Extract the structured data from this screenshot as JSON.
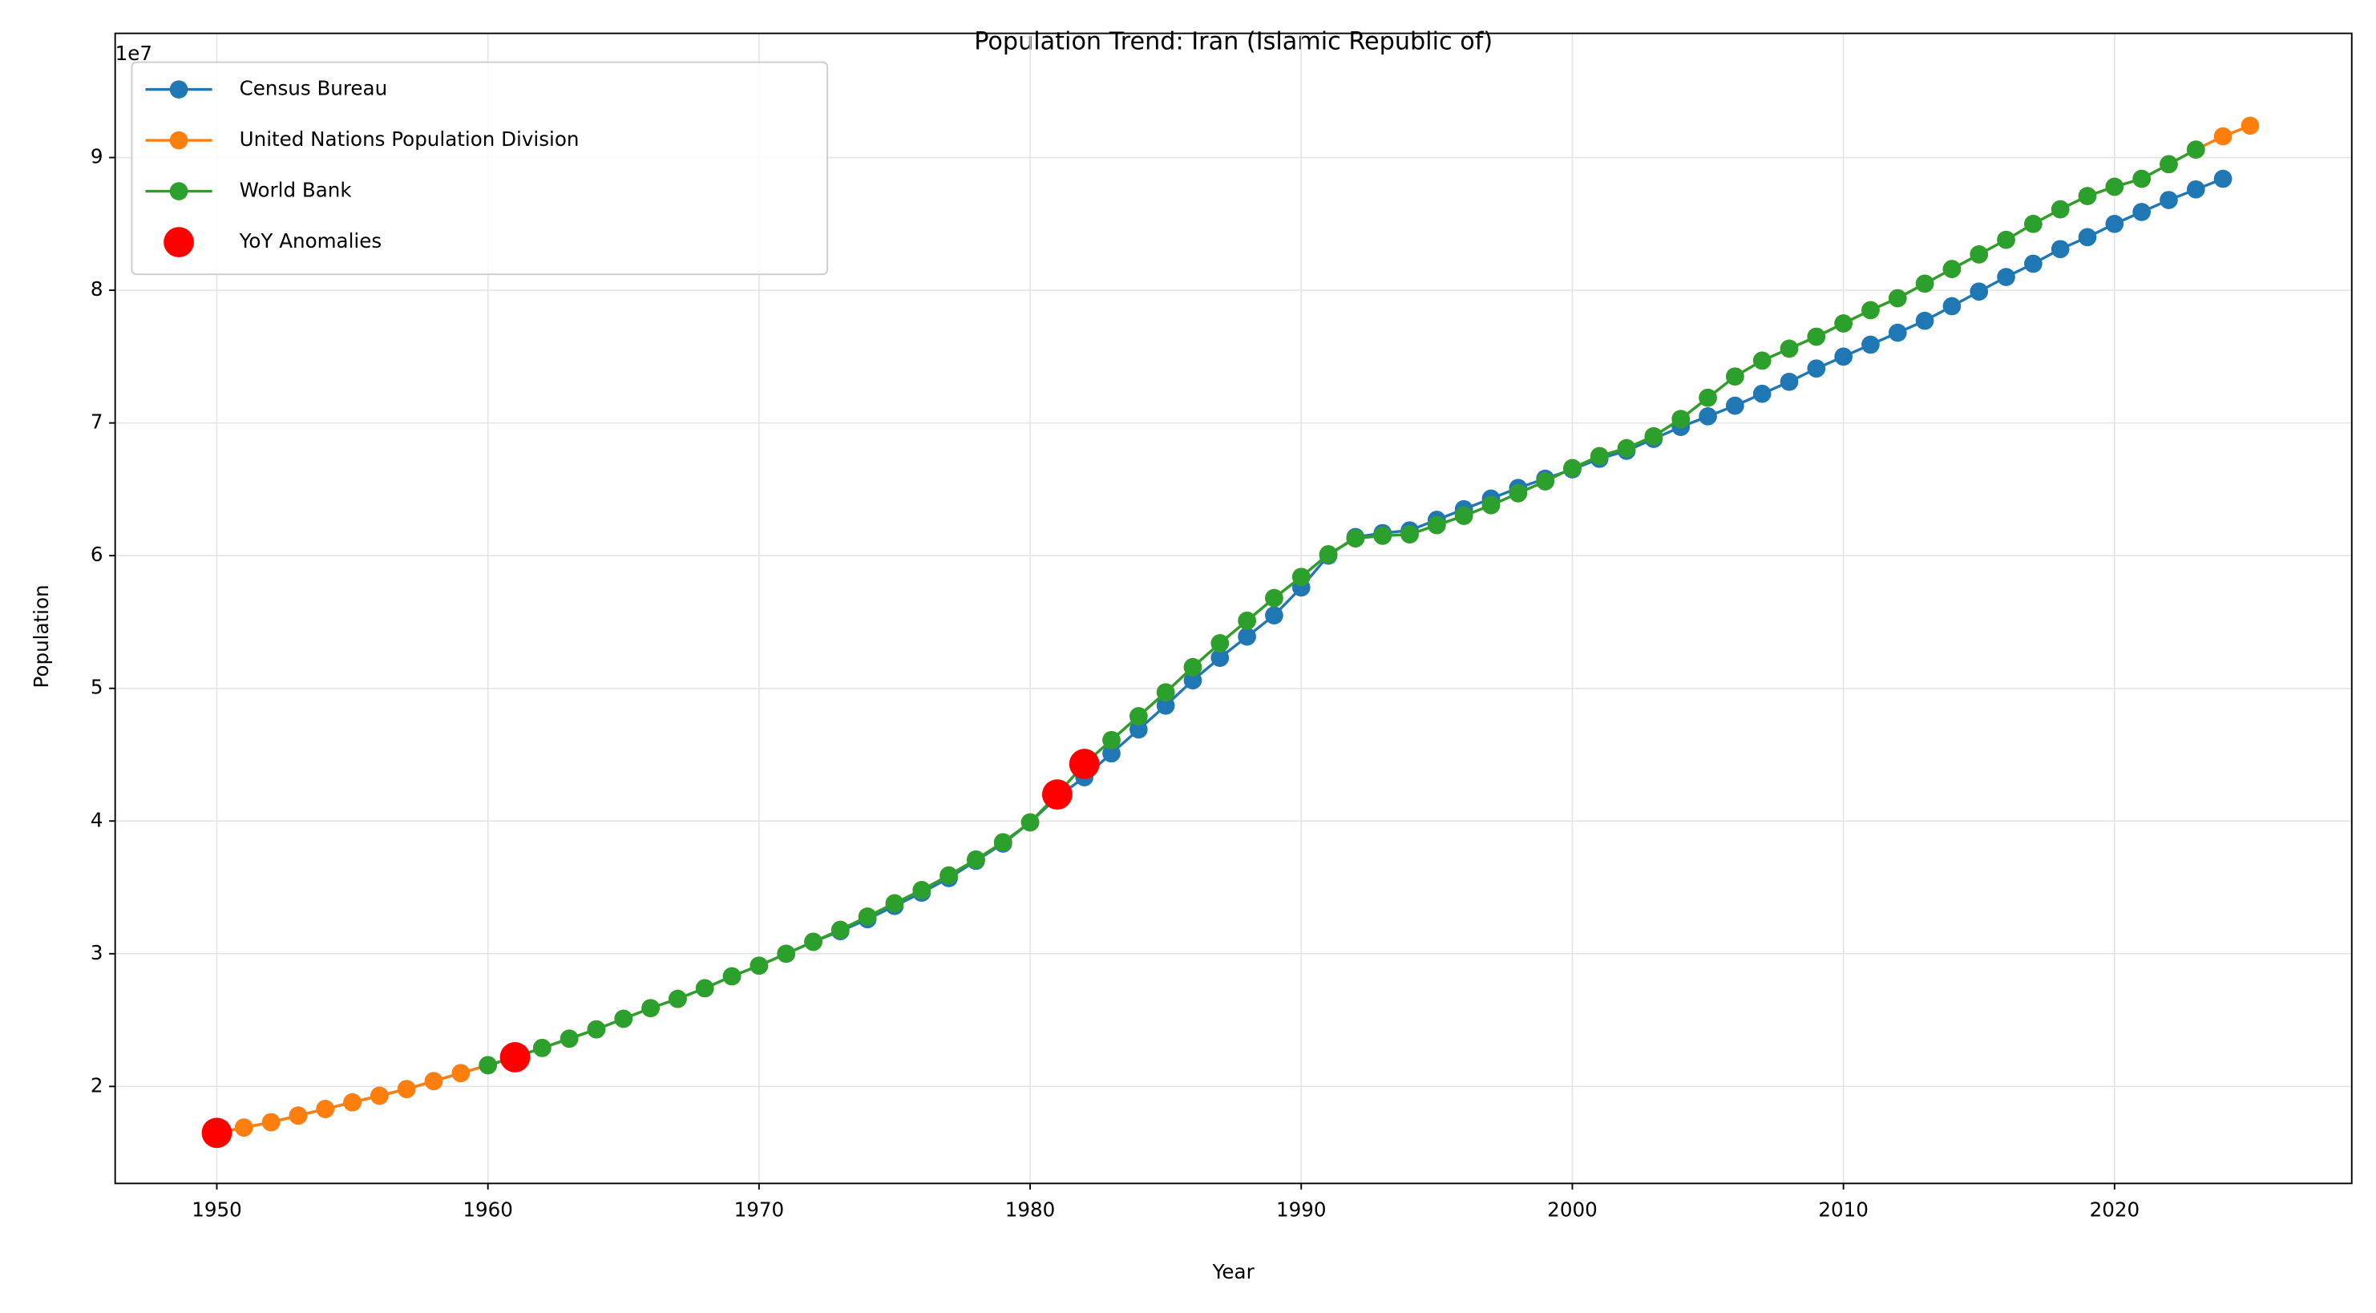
{
  "chart_data": {
    "type": "line",
    "title": "Population Trend: Iran (Islamic Republic of)",
    "x_label": "Year",
    "y_label": "Population",
    "y_offset_text": "1e7",
    "xlim": [
      1946.25,
      2028.75
    ],
    "xticks": [
      1950,
      1960,
      1970,
      1980,
      1990,
      2000,
      2010,
      2020
    ],
    "ylim": [
      12690000,
      99360000
    ],
    "yticks": [
      {
        "value": 20000000,
        "label": "2"
      },
      {
        "value": 30000000,
        "label": "3"
      },
      {
        "value": 40000000,
        "label": "4"
      },
      {
        "value": 50000000,
        "label": "5"
      },
      {
        "value": 60000000,
        "label": "6"
      },
      {
        "value": 70000000,
        "label": "7"
      },
      {
        "value": 80000000,
        "label": "8"
      },
      {
        "value": 90000000,
        "label": "9"
      }
    ],
    "grid": true,
    "legend": "upper left",
    "series": [
      {
        "name": "Census Bureau",
        "color": "#1f77b4",
        "x": [
          1950,
          1951,
          1952,
          1953,
          1954,
          1955,
          1956,
          1957,
          1958,
          1959,
          1960,
          1961,
          1962,
          1963,
          1964,
          1965,
          1966,
          1967,
          1968,
          1969,
          1970,
          1971,
          1972,
          1973,
          1974,
          1975,
          1976,
          1977,
          1978,
          1979,
          1980,
          1981,
          1982,
          1983,
          1984,
          1985,
          1986,
          1987,
          1988,
          1989,
          1990,
          1991,
          1992,
          1993,
          1994,
          1995,
          1996,
          1997,
          1998,
          1999,
          2000,
          2001,
          2002,
          2003,
          2004,
          2005,
          2006,
          2007,
          2008,
          2009,
          2010,
          2011,
          2012,
          2013,
          2014,
          2015,
          2016,
          2017,
          2018,
          2019,
          2020,
          2021,
          2022,
          2023,
          2024
        ],
        "values": [
          16500000,
          16900000,
          17300000,
          17800000,
          18300000,
          18800000,
          19300000,
          19800000,
          20400000,
          21000000,
          21600000,
          22200000,
          22900000,
          23600000,
          24300000,
          25100000,
          25900000,
          26600000,
          27400000,
          28300000,
          29100000,
          30000000,
          30900000,
          31700000,
          32600000,
          33600000,
          34600000,
          35700000,
          37000000,
          38300000,
          39900000,
          41800000,
          43300000,
          45100000,
          46900000,
          48700000,
          50600000,
          52300000,
          53900000,
          55500000,
          57600000,
          60000000,
          61400000,
          61700000,
          61900000,
          62700000,
          63500000,
          64300000,
          65100000,
          65800000,
          66500000,
          67300000,
          67900000,
          68800000,
          69700000,
          70500000,
          71300000,
          72200000,
          73100000,
          74100000,
          75000000,
          75900000,
          76800000,
          77700000,
          78800000,
          79900000,
          81000000,
          82000000,
          83100000,
          84000000,
          85000000,
          85900000,
          86800000,
          87600000,
          88400000
        ]
      },
      {
        "name": "United Nations Population Division",
        "color": "#ff7f0e",
        "x": [
          1950,
          1951,
          1952,
          1953,
          1954,
          1955,
          1956,
          1957,
          1958,
          1959,
          1960,
          1961,
          1962,
          1963,
          1964,
          1965,
          1966,
          1967,
          1968,
          1969,
          1970,
          1971,
          1972,
          1973,
          1974,
          1975,
          1976,
          1977,
          1978,
          1979,
          1980,
          1981,
          1982,
          1983,
          1984,
          1985,
          1986,
          1987,
          1988,
          1989,
          1990,
          1991,
          1992,
          1993,
          1994,
          1995,
          1996,
          1997,
          1998,
          1999,
          2000,
          2001,
          2002,
          2003,
          2004,
          2005,
          2006,
          2007,
          2008,
          2009,
          2010,
          2011,
          2012,
          2013,
          2014,
          2015,
          2016,
          2017,
          2018,
          2019,
          2020,
          2021,
          2022,
          2023,
          2024,
          2025
        ],
        "values": [
          16500000,
          16900000,
          17300000,
          17800000,
          18300000,
          18800000,
          19300000,
          19800000,
          20400000,
          21000000,
          21600000,
          22200000,
          22900000,
          23600000,
          24300000,
          25100000,
          25900000,
          26600000,
          27400000,
          28300000,
          29100000,
          30000000,
          30900000,
          31800000,
          32800000,
          33800000,
          34800000,
          35900000,
          37100000,
          38400000,
          39900000,
          42000000,
          44300000,
          46100000,
          47900000,
          49700000,
          51600000,
          53400000,
          55100000,
          56800000,
          58400000,
          60100000,
          61300000,
          61500000,
          61600000,
          62300000,
          63000000,
          63800000,
          64700000,
          65600000,
          66600000,
          67500000,
          68100000,
          69000000,
          70300000,
          71900000,
          73500000,
          74700000,
          75600000,
          76500000,
          77500000,
          78500000,
          79400000,
          80500000,
          81600000,
          82700000,
          83800000,
          85000000,
          86100000,
          87100000,
          87800000,
          88400000,
          89500000,
          90600000,
          91600000,
          92400000
        ]
      },
      {
        "name": "World Bank",
        "color": "#2ca02c",
        "x": [
          1960,
          1961,
          1962,
          1963,
          1964,
          1965,
          1966,
          1967,
          1968,
          1969,
          1970,
          1971,
          1972,
          1973,
          1974,
          1975,
          1976,
          1977,
          1978,
          1979,
          1980,
          1981,
          1982,
          1983,
          1984,
          1985,
          1986,
          1987,
          1988,
          1989,
          1990,
          1991,
          1992,
          1993,
          1994,
          1995,
          1996,
          1997,
          1998,
          1999,
          2000,
          2001,
          2002,
          2003,
          2004,
          2005,
          2006,
          2007,
          2008,
          2009,
          2010,
          2011,
          2012,
          2013,
          2014,
          2015,
          2016,
          2017,
          2018,
          2019,
          2020,
          2021,
          2022,
          2023
        ],
        "values": [
          21600000,
          22200000,
          22900000,
          23600000,
          24300000,
          25100000,
          25900000,
          26600000,
          27400000,
          28300000,
          29100000,
          30000000,
          30900000,
          31800000,
          32800000,
          33800000,
          34800000,
          35900000,
          37100000,
          38400000,
          39900000,
          42000000,
          44300000,
          46100000,
          47900000,
          49700000,
          51600000,
          53400000,
          55100000,
          56800000,
          58400000,
          60100000,
          61300000,
          61500000,
          61600000,
          62300000,
          63000000,
          63800000,
          64700000,
          65600000,
          66600000,
          67500000,
          68100000,
          69000000,
          70300000,
          71900000,
          73500000,
          74700000,
          75600000,
          76500000,
          77500000,
          78500000,
          79400000,
          80500000,
          81600000,
          82700000,
          83800000,
          85000000,
          86100000,
          87100000,
          87800000,
          88400000,
          89500000,
          90600000
        ]
      }
    ],
    "anomalies": {
      "name": "YoY Anomalies",
      "color": "#ff0000",
      "x": [
        1950,
        1961,
        1981,
        1982
      ],
      "values": [
        16500000,
        22200000,
        42000000,
        44300000
      ]
    }
  }
}
